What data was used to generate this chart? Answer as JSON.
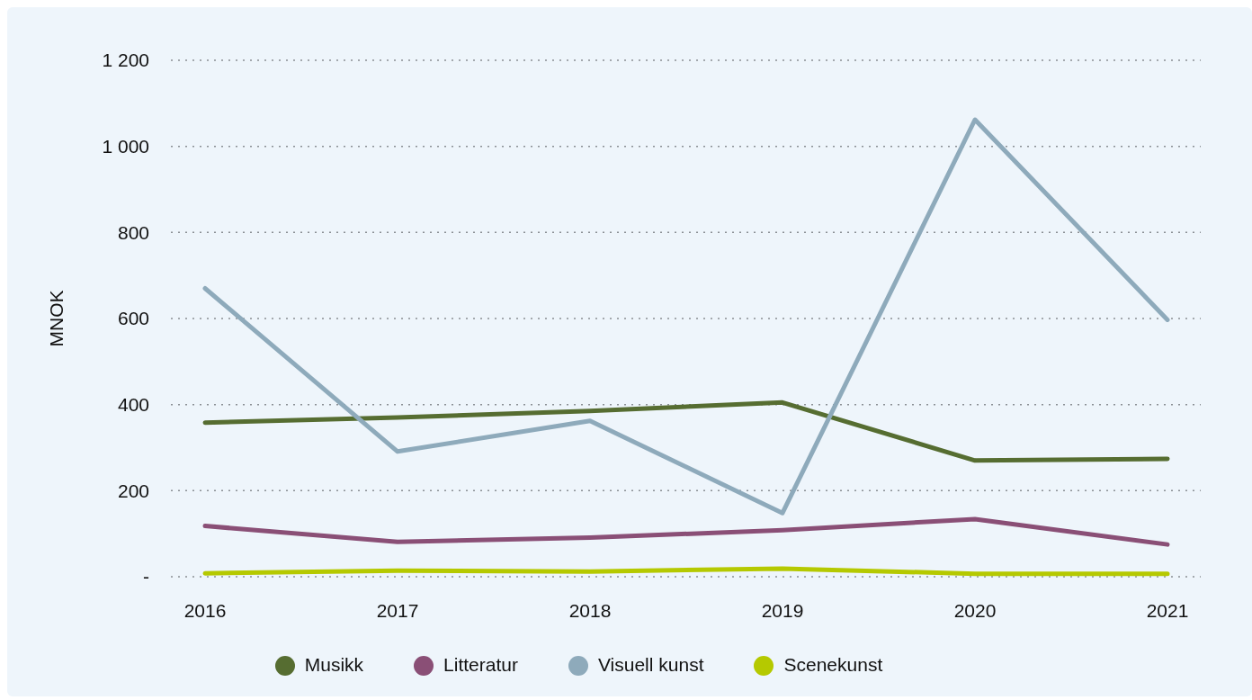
{
  "chart_data": {
    "type": "line",
    "ylabel": "MNOK",
    "categories": [
      "2016",
      "2017",
      "2018",
      "2019",
      "2020",
      "2021"
    ],
    "series": [
      {
        "name": "Musikk",
        "color": "#566d31",
        "values": [
          358,
          370,
          385,
          405,
          270,
          274
        ]
      },
      {
        "name": "Litteratur",
        "color": "#8a4f76",
        "values": [
          118,
          81,
          91,
          108,
          134,
          75
        ]
      },
      {
        "name": "Visuell kunst",
        "color": "#8eaabb",
        "values": [
          670,
          291,
          362,
          148,
          1062,
          597
        ]
      },
      {
        "name": "Scenekunst",
        "color": "#b5c900",
        "values": [
          8,
          14,
          12,
          19,
          7,
          7
        ]
      }
    ],
    "ylim": [
      0,
      1200
    ],
    "yticks": [
      {
        "value": 0,
        "label": "-"
      },
      200,
      400,
      600,
      800,
      {
        "value": 1000,
        "label": "1 000"
      },
      {
        "value": 1200,
        "label": "1 200"
      }
    ],
    "grid": "y",
    "legend": "bottom",
    "marker": "none",
    "line_style": "solid"
  }
}
